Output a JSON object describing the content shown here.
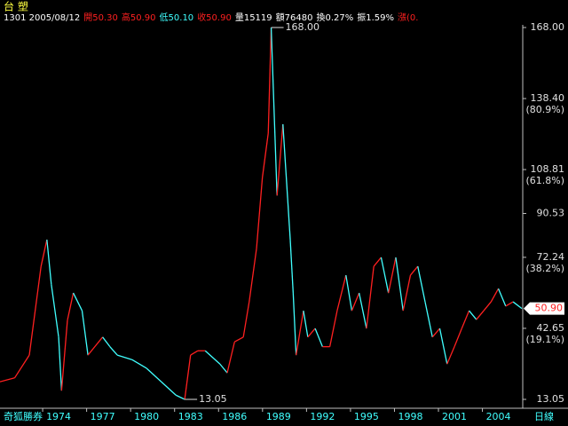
{
  "chart_data": {
    "type": "line",
    "title": "台 塑",
    "header": [
      {
        "text": "1301 2005/08/12",
        "color": "#ffffff"
      },
      {
        "text": "開50.30",
        "color": "#ff2020"
      },
      {
        "text": "高50.90",
        "color": "#ff2020"
      },
      {
        "text": "低50.10",
        "color": "#40ffff"
      },
      {
        "text": "收50.90",
        "color": "#ff2020"
      },
      {
        "text": "量15119",
        "color": "#ffffff"
      },
      {
        "text": "額76480",
        "color": "#ffffff"
      },
      {
        "text": "換0.27%",
        "color": "#ffffff"
      },
      {
        "text": "振1.59%",
        "color": "#ffffff"
      },
      {
        "text": "漲(0.",
        "color": "#ff2020"
      }
    ],
    "brand": "奇狐勝券",
    "period": "日線",
    "xlim": [
      1970,
      2005.6
    ],
    "xticks": [
      1974,
      1977,
      1980,
      1983,
      1986,
      1989,
      1992,
      1995,
      1998,
      2001,
      2004
    ],
    "ylim": [
      13.05,
      168
    ],
    "yticks": [
      {
        "value": 168,
        "label": "168.00"
      },
      {
        "value": 138.4,
        "label": "138.40"
      },
      {
        "value": 108.81,
        "label": "108.81"
      },
      90.53,
      72.24,
      42.65,
      13.05
    ],
    "fib_levels": [
      {
        "value": 138.4,
        "label": "(80.9%)"
      },
      {
        "value": 108.81,
        "label": "(61.8%)"
      },
      {
        "value": 72.24,
        "label": "(38.2%)"
      },
      {
        "value": 42.65,
        "label": "(19.1%)"
      }
    ],
    "annotations": [
      {
        "x": 1988.5,
        "y": 168,
        "label": "168.00"
      },
      {
        "x": 1982.6,
        "y": 13.05,
        "label": "13.05"
      }
    ],
    "last_price": {
      "value": 50.9,
      "label": "50.90"
    },
    "up_color": "#ff2020",
    "down_color": "#40ffff",
    "x": [
      1970,
      1971,
      1972,
      1972.8,
      1973.2,
      1973.5,
      1974,
      1974.2,
      1974.6,
      1975,
      1975.6,
      1976,
      1977,
      1977.5,
      1978,
      1979,
      1980,
      1981,
      1982,
      1982.6,
      1983,
      1983.5,
      1984,
      1985,
      1985.5,
      1986,
      1986.6,
      1987,
      1987.5,
      1987.9,
      1988.3,
      1988.5,
      1988.9,
      1989.3,
      1989.8,
      1990,
      1990.2,
      1990.7,
      1991,
      1991.5,
      1992,
      1992.5,
      1993,
      1993.6,
      1994,
      1994.5,
      1995,
      1995.5,
      1996,
      1996.5,
      1997,
      1997.5,
      1998,
      1998.5,
      1999,
      1999.5,
      2000,
      2000.5,
      2001,
      2001.5,
      2002,
      2002.5,
      2003,
      2003.5,
      2004,
      2004.5,
      2005,
      2005.6
    ],
    "series": [
      {
        "name": "台塑",
        "values": [
          20.4,
          22,
          31.5,
          68.5,
          79.6,
          61,
          39,
          16.7,
          46,
          57.4,
          50,
          31.5,
          39,
          35,
          31.5,
          29.6,
          26,
          20.4,
          14.8,
          13.05,
          31.5,
          33.3,
          33.3,
          27.8,
          24.1,
          37,
          39,
          53.7,
          75.9,
          105.5,
          124,
          168,
          98,
          127.7,
          79.6,
          57.4,
          31.5,
          50,
          39,
          42.6,
          35,
          35,
          50,
          64.8,
          50,
          57.4,
          42.6,
          68.5,
          72.2,
          57.4,
          72.2,
          50,
          64.8,
          68.5,
          53.7,
          39,
          42.6,
          27.8,
          35,
          42.6,
          50,
          46.3,
          50,
          53.7,
          59.2,
          51.9,
          53.7,
          50.9
        ]
      }
    ]
  }
}
